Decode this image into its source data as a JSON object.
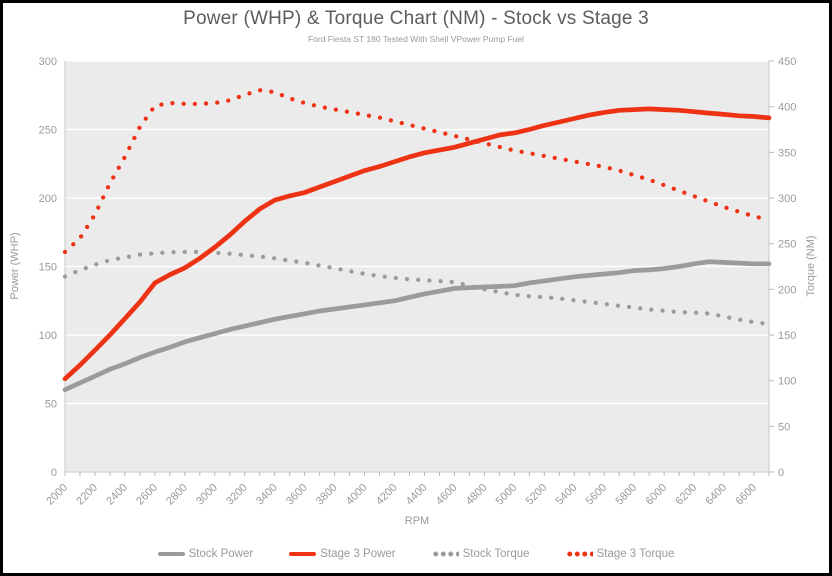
{
  "chart_data": {
    "type": "line",
    "title": "Power (WHP) & Torque Chart (NM) - Stock vs Stage 3",
    "subtitle": "Ford Fiesta ST 180 Tested With Shell VPower Pump Fuel",
    "x": {
      "label": "RPM",
      "min": 2000,
      "max": 6700,
      "minor_tick_step": 100,
      "tick_labels": [
        2000,
        2200,
        2400,
        2600,
        2800,
        3000,
        3200,
        3400,
        3600,
        3800,
        4000,
        4200,
        4400,
        4600,
        4800,
        5000,
        5200,
        5400,
        5600,
        5800,
        6000,
        6200,
        6400,
        6600
      ]
    },
    "y_left": {
      "label": "Power (WHP)",
      "min": 0,
      "max": 300,
      "ticks": [
        0,
        50,
        100,
        150,
        200,
        250,
        300
      ]
    },
    "y_right": {
      "label": "Torque (NM)",
      "min": 0,
      "max": 450,
      "ticks": [
        0,
        50,
        100,
        150,
        200,
        250,
        300,
        350,
        400,
        450
      ]
    },
    "grid": "horizontal-white",
    "legend_position": "bottom",
    "rpm": [
      2000,
      2100,
      2200,
      2300,
      2400,
      2500,
      2600,
      2700,
      2800,
      2900,
      3000,
      3100,
      3200,
      3300,
      3400,
      3500,
      3600,
      3700,
      3800,
      3900,
      4000,
      4100,
      4200,
      4300,
      4400,
      4500,
      4600,
      4700,
      4800,
      4900,
      5000,
      5100,
      5200,
      5300,
      5400,
      5500,
      5600,
      5700,
      5800,
      5900,
      6000,
      6100,
      6200,
      6300,
      6400,
      6500,
      6600,
      6700
    ],
    "series": [
      {
        "name": "Stock Power",
        "axis": "left",
        "style": "solid",
        "color": "#9b9b9b",
        "values": [
          60,
          65,
          70,
          75,
          79,
          83.5,
          87.5,
          91,
          95,
          98,
          101,
          104,
          106.5,
          109,
          111.5,
          113.5,
          115.5,
          117.5,
          119,
          120.5,
          122,
          123.5,
          125,
          127.5,
          130,
          132,
          134,
          134.5,
          135,
          135.5,
          136,
          138,
          139.5,
          141,
          142.5,
          143.5,
          144.5,
          145.5,
          147,
          147.5,
          148.5,
          150,
          152,
          153.5,
          153,
          152.5,
          152,
          152
        ]
      },
      {
        "name": "Stage 3 Power",
        "axis": "left",
        "style": "solid",
        "color": "#ee3214",
        "values": [
          68,
          78,
          89,
          100,
          112,
          124,
          138,
          144,
          149,
          156,
          164,
          173,
          183,
          192,
          198.5,
          201.5,
          204,
          208,
          212,
          216,
          220,
          223,
          226.5,
          230,
          233,
          235,
          237,
          240,
          243,
          246,
          247.5,
          250,
          253,
          255.5,
          258,
          260.5,
          262.5,
          264,
          264.5,
          265,
          264.5,
          264,
          263,
          262,
          261,
          260,
          259.5,
          258.5
        ]
      },
      {
        "name": "Stock Torque",
        "axis": "right",
        "style": "dotted",
        "color": "#9b9b9b",
        "values": [
          214,
          221,
          227,
          232,
          235,
          238,
          239.5,
          240.5,
          241,
          241,
          240,
          239,
          237.5,
          236,
          234,
          231.5,
          229,
          226,
          223,
          220,
          217,
          214.5,
          212.5,
          211,
          210,
          209,
          208,
          204,
          200,
          197,
          194,
          192.5,
          191.5,
          190,
          188,
          186,
          184,
          182,
          180,
          178,
          176.5,
          175,
          174.5,
          173.5,
          170,
          167,
          164,
          162
        ]
      },
      {
        "name": "Stage 3 Torque",
        "axis": "right",
        "style": "dotted",
        "color": "#ee3214",
        "values": [
          241,
          256,
          282,
          316,
          345,
          378,
          401,
          404,
          403,
          403,
          404,
          407,
          413,
          418,
          416,
          409,
          404,
          400,
          397,
          394,
          391,
          388,
          384,
          380,
          376,
          372,
          368,
          364,
          360,
          356,
          352,
          349,
          346,
          343,
          340,
          337,
          334,
          330,
          325,
          320,
          314,
          308,
          302,
          296,
          290,
          285,
          280,
          276
        ]
      }
    ],
    "colors": {
      "plot_background": "#ebebeb",
      "gridline": "#ffffff",
      "axis_line": "#c9c9c9",
      "tick_mark": "#b9b9b9",
      "tick_text": "#9a9a9a",
      "title_text": "#5c5c5c"
    }
  }
}
